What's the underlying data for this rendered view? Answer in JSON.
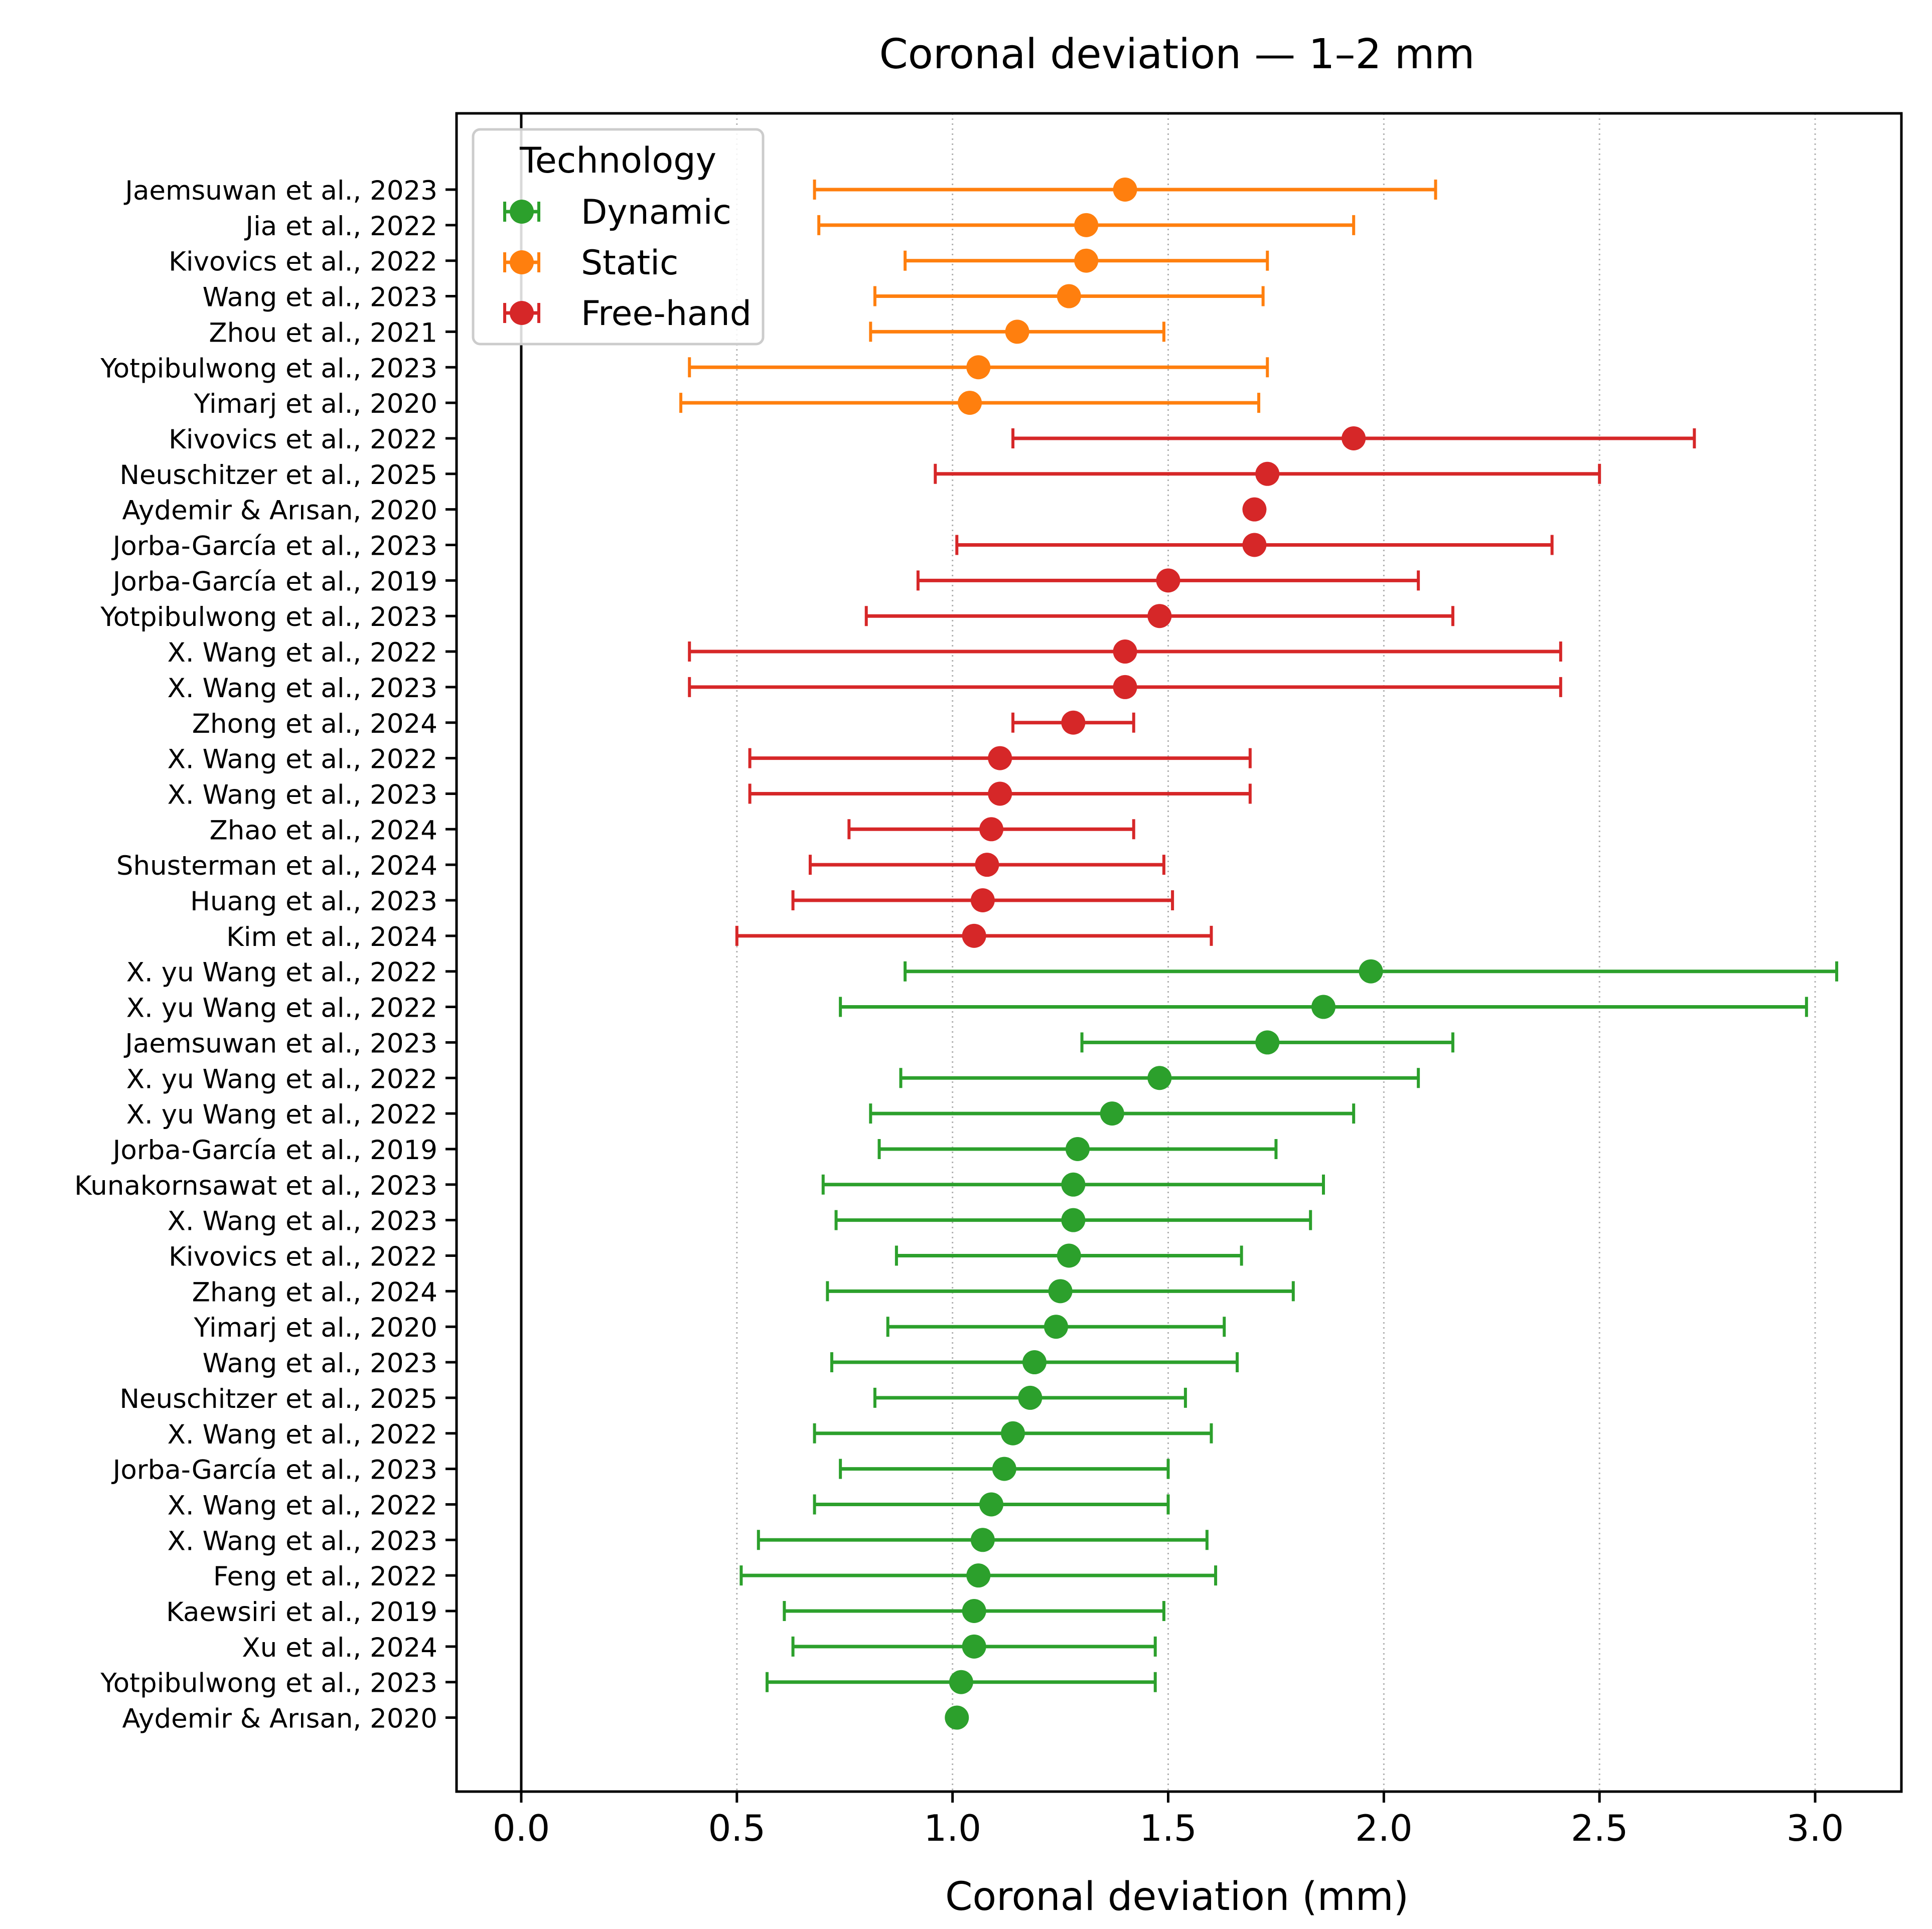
{
  "chart_data": {
    "type": "scatter",
    "title": "Coronal deviation — 1–2 mm",
    "xlabel": "Coronal deviation (mm)",
    "ylabel": "",
    "xlim": [
      -0.15,
      3.2
    ],
    "xticks": [
      0.0,
      0.5,
      1.0,
      1.5,
      2.0,
      2.5,
      3.0
    ],
    "xtick_labels": [
      "0.0",
      "0.5",
      "1.0",
      "1.5",
      "2.0",
      "2.5",
      "3.0"
    ],
    "grid": "x dotted",
    "reference_line_x": 0,
    "legend": {
      "title": "Technology",
      "placement": "top-left",
      "entries": [
        {
          "label": "Dynamic",
          "color": "#2ca02c"
        },
        {
          "label": "Static",
          "color": "#ff7f0e"
        },
        {
          "label": "Free-hand",
          "color": "#d62728"
        }
      ]
    },
    "rows": [
      {
        "label": "Jaemsuwan et al., 2023",
        "group": "Static",
        "mean": 1.4,
        "lo": 0.68,
        "hi": 2.12
      },
      {
        "label": "Jia et al., 2022",
        "group": "Static",
        "mean": 1.31,
        "lo": 0.69,
        "hi": 1.93
      },
      {
        "label": "Kivovics et al., 2022",
        "group": "Static",
        "mean": 1.31,
        "lo": 0.89,
        "hi": 1.73
      },
      {
        "label": "Wang et al., 2023",
        "group": "Static",
        "mean": 1.27,
        "lo": 0.82,
        "hi": 1.72
      },
      {
        "label": "Zhou et al., 2021",
        "group": "Static",
        "mean": 1.15,
        "lo": 0.81,
        "hi": 1.49
      },
      {
        "label": "Yotpibulwong et al., 2023",
        "group": "Static",
        "mean": 1.06,
        "lo": 0.39,
        "hi": 1.73
      },
      {
        "label": "Yimarj et al., 2020",
        "group": "Static",
        "mean": 1.04,
        "lo": 0.37,
        "hi": 1.71
      },
      {
        "label": "Kivovics et al., 2022",
        "group": "Free-hand",
        "mean": 1.93,
        "lo": 1.14,
        "hi": 2.72
      },
      {
        "label": "Neuschitzer et al., 2025",
        "group": "Free-hand",
        "mean": 1.73,
        "lo": 0.96,
        "hi": 2.5
      },
      {
        "label": "Aydemir & Arısan, 2020",
        "group": "Free-hand",
        "mean": 1.7,
        "lo": null,
        "hi": null
      },
      {
        "label": "Jorba-García et al., 2023",
        "group": "Free-hand",
        "mean": 1.7,
        "lo": 1.01,
        "hi": 2.39
      },
      {
        "label": "Jorba-García et al., 2019",
        "group": "Free-hand",
        "mean": 1.5,
        "lo": 0.92,
        "hi": 2.08
      },
      {
        "label": "Yotpibulwong et al., 2023",
        "group": "Free-hand",
        "mean": 1.48,
        "lo": 0.8,
        "hi": 2.16
      },
      {
        "label": "X. Wang et al., 2022",
        "group": "Free-hand",
        "mean": 1.4,
        "lo": 0.39,
        "hi": 2.41
      },
      {
        "label": "X. Wang et al., 2023",
        "group": "Free-hand",
        "mean": 1.4,
        "lo": 0.39,
        "hi": 2.41
      },
      {
        "label": "Zhong et al., 2024",
        "group": "Free-hand",
        "mean": 1.28,
        "lo": 1.14,
        "hi": 1.42
      },
      {
        "label": "X. Wang et al., 2022",
        "group": "Free-hand",
        "mean": 1.11,
        "lo": 0.53,
        "hi": 1.69
      },
      {
        "label": "X. Wang et al., 2023",
        "group": "Free-hand",
        "mean": 1.11,
        "lo": 0.53,
        "hi": 1.69
      },
      {
        "label": "Zhao et al., 2024",
        "group": "Free-hand",
        "mean": 1.09,
        "lo": 0.76,
        "hi": 1.42
      },
      {
        "label": "Shusterman et al., 2024",
        "group": "Free-hand",
        "mean": 1.08,
        "lo": 0.67,
        "hi": 1.49
      },
      {
        "label": "Huang et al., 2023",
        "group": "Free-hand",
        "mean": 1.07,
        "lo": 0.63,
        "hi": 1.51
      },
      {
        "label": "Kim et al., 2024",
        "group": "Free-hand",
        "mean": 1.05,
        "lo": 0.5,
        "hi": 1.6
      },
      {
        "label": "X. yu Wang et al., 2022",
        "group": "Dynamic",
        "mean": 1.97,
        "lo": 0.89,
        "hi": 3.05
      },
      {
        "label": "X. yu Wang et al., 2022",
        "group": "Dynamic",
        "mean": 1.86,
        "lo": 0.74,
        "hi": 2.98
      },
      {
        "label": "Jaemsuwan et al., 2023",
        "group": "Dynamic",
        "mean": 1.73,
        "lo": 1.3,
        "hi": 2.16
      },
      {
        "label": "X. yu Wang et al., 2022",
        "group": "Dynamic",
        "mean": 1.48,
        "lo": 0.88,
        "hi": 2.08
      },
      {
        "label": "X. yu Wang et al., 2022",
        "group": "Dynamic",
        "mean": 1.37,
        "lo": 0.81,
        "hi": 1.93
      },
      {
        "label": "Jorba-García et al., 2019",
        "group": "Dynamic",
        "mean": 1.29,
        "lo": 0.83,
        "hi": 1.75
      },
      {
        "label": "Kunakornsawat et al., 2023",
        "group": "Dynamic",
        "mean": 1.28,
        "lo": 0.7,
        "hi": 1.86
      },
      {
        "label": "X. Wang et al., 2023",
        "group": "Dynamic",
        "mean": 1.28,
        "lo": 0.73,
        "hi": 1.83
      },
      {
        "label": "Kivovics et al., 2022",
        "group": "Dynamic",
        "mean": 1.27,
        "lo": 0.87,
        "hi": 1.67
      },
      {
        "label": "Zhang et al., 2024",
        "group": "Dynamic",
        "mean": 1.25,
        "lo": 0.71,
        "hi": 1.79
      },
      {
        "label": "Yimarj et al., 2020",
        "group": "Dynamic",
        "mean": 1.24,
        "lo": 0.85,
        "hi": 1.63
      },
      {
        "label": "Wang et al., 2023",
        "group": "Dynamic",
        "mean": 1.19,
        "lo": 0.72,
        "hi": 1.66
      },
      {
        "label": "Neuschitzer et al., 2025",
        "group": "Dynamic",
        "mean": 1.18,
        "lo": 0.82,
        "hi": 1.54
      },
      {
        "label": "X. Wang et al., 2022",
        "group": "Dynamic",
        "mean": 1.14,
        "lo": 0.68,
        "hi": 1.6
      },
      {
        "label": "Jorba-García et al., 2023",
        "group": "Dynamic",
        "mean": 1.12,
        "lo": 0.74,
        "hi": 1.5
      },
      {
        "label": "X. Wang et al., 2022",
        "group": "Dynamic",
        "mean": 1.09,
        "lo": 0.68,
        "hi": 1.5
      },
      {
        "label": "X. Wang et al., 2023",
        "group": "Dynamic",
        "mean": 1.07,
        "lo": 0.55,
        "hi": 1.59
      },
      {
        "label": "Feng et al., 2022",
        "group": "Dynamic",
        "mean": 1.06,
        "lo": 0.51,
        "hi": 1.61
      },
      {
        "label": "Kaewsiri et al., 2019",
        "group": "Dynamic",
        "mean": 1.05,
        "lo": 0.61,
        "hi": 1.49
      },
      {
        "label": "Xu et al., 2024",
        "group": "Dynamic",
        "mean": 1.05,
        "lo": 0.63,
        "hi": 1.47
      },
      {
        "label": "Yotpibulwong et al., 2023",
        "group": "Dynamic",
        "mean": 1.02,
        "lo": 0.57,
        "hi": 1.47
      },
      {
        "label": "Aydemir & Arısan, 2020",
        "group": "Dynamic",
        "mean": 1.01,
        "lo": null,
        "hi": null
      }
    ]
  }
}
